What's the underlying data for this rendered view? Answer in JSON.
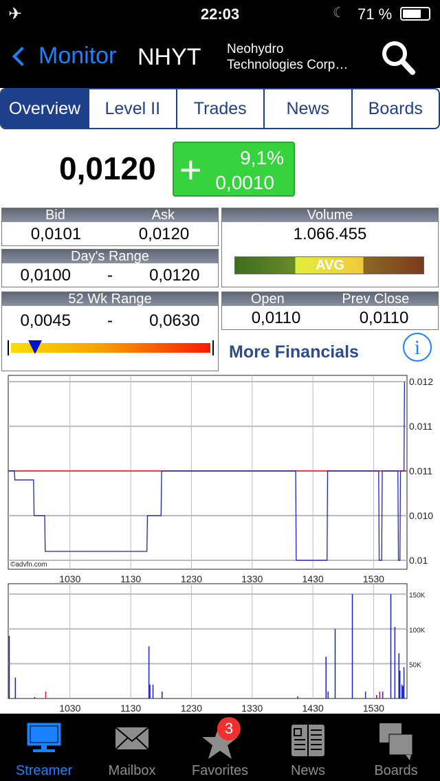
{
  "status_bar": {
    "time": "22:03",
    "battery": "71 %",
    "battery_level": 0.71,
    "icons": [
      "airplane-icon",
      "moon-icon",
      "battery-icon"
    ]
  },
  "nav": {
    "back_label": "Monitor",
    "symbol": "NHYT",
    "company_line1": "Neohydro",
    "company_line2": "Technologies Corp…"
  },
  "tabs": [
    {
      "label": "Overview",
      "active": true
    },
    {
      "label": "Level II"
    },
    {
      "label": "Trades"
    },
    {
      "label": "News"
    },
    {
      "label": "Boards"
    }
  ],
  "quote": {
    "price": "0,0120",
    "change_sign": "+",
    "change_pct": "9,1%",
    "change_abs": "0,0010",
    "colors": {
      "up": "#36d33e"
    }
  },
  "bid_ask": {
    "bid_label": "Bid",
    "ask_label": "Ask",
    "bid": "0,0101",
    "ask": "0,0120"
  },
  "days_range": {
    "label": "Day's Range",
    "low": "0,0100",
    "sep": "-",
    "high": "0,0120"
  },
  "wk52": {
    "label": "52 Wk Range",
    "low": "0,0045",
    "sep": "-",
    "high": "0,0630",
    "marker_fraction": 0.13
  },
  "volume": {
    "label": "Volume",
    "value": "1.066.455",
    "bar_label": "AVG"
  },
  "open_close": {
    "open_label": "Open",
    "prev_label": "Prev Close",
    "open": "0,0110",
    "prev": "0,0110"
  },
  "more_financials": "More Financials",
  "chart_data": [
    {
      "type": "line",
      "watermark": "©advfn.com",
      "x_ticks": [
        "1030",
        "1130",
        "1230",
        "1330",
        "1430",
        "1530"
      ],
      "y_ticks": [
        "0.012",
        "0.011",
        "0.011",
        "0.010",
        "0.01"
      ],
      "y_tick_values": [
        0.012,
        0.0115,
        0.011,
        0.0105,
        0.01
      ],
      "xlim": [
        "09:29",
        "16:03"
      ],
      "ylim": [
        0.0099,
        0.01207
      ],
      "grid": true,
      "reference_line": {
        "value": 0.011,
        "color": "#e02020"
      },
      "series": [
        {
          "color": "#1a22c8",
          "points": [
            [
              "09:29",
              0.011
            ],
            [
              "09:35",
              0.0109
            ],
            [
              "09:54",
              0.0105
            ],
            [
              "10:05",
              0.0101
            ],
            [
              "11:46",
              0.0105
            ],
            [
              "12:00",
              0.011
            ],
            [
              "14:13",
              0.01
            ],
            [
              "14:44",
              0.011
            ],
            [
              "15:35",
              0.01
            ],
            [
              "15:38",
              0.011
            ],
            [
              "15:54",
              0.01
            ],
            [
              "15:56",
              0.011
            ],
            [
              "16:00",
              0.012
            ]
          ]
        }
      ]
    },
    {
      "type": "bar",
      "x_ticks": [
        "1030",
        "1130",
        "1230",
        "1330",
        "1430",
        "1530"
      ],
      "y_ticks": [
        "150K",
        "100K",
        "50K"
      ],
      "y_tick_values": [
        150000,
        100000,
        50000
      ],
      "xlim": [
        "09:29",
        "16:03"
      ],
      "ylim": [
        0,
        165000
      ],
      "grid": true,
      "bars": [
        [
          "09:30",
          90000,
          "b"
        ],
        [
          "09:36",
          30000,
          "b"
        ],
        [
          "09:55",
          2000,
          "b"
        ],
        [
          "10:06",
          10000,
          "r"
        ],
        [
          "11:48",
          75000,
          "b"
        ],
        [
          "11:49",
          20000,
          "b"
        ],
        [
          "11:52",
          20000,
          "b"
        ],
        [
          "12:01",
          10000,
          "b"
        ],
        [
          "14:15",
          3000,
          "b"
        ],
        [
          "14:43",
          60000,
          "b"
        ],
        [
          "14:45",
          10000,
          "b"
        ],
        [
          "14:52",
          100000,
          "b"
        ],
        [
          "15:09",
          150000,
          "b"
        ],
        [
          "15:22",
          10000,
          "b"
        ],
        [
          "15:33",
          5000,
          "b"
        ],
        [
          "15:36",
          10000,
          "r"
        ],
        [
          "15:39",
          10000,
          "b"
        ],
        [
          "15:47",
          150000,
          "b"
        ],
        [
          "15:51",
          103000,
          "b"
        ],
        [
          "15:55",
          65000,
          "b"
        ],
        [
          "15:56",
          40000,
          "b"
        ],
        [
          "15:58",
          20000,
          "b"
        ],
        [
          "15:59",
          18000,
          "b"
        ],
        [
          "16:00",
          45000,
          "b"
        ]
      ],
      "colors": {
        "b": "#1a22c8",
        "r": "#e02020"
      }
    }
  ],
  "tabbar": {
    "items": [
      {
        "label": "Streamer",
        "active": true
      },
      {
        "label": "Mailbox"
      },
      {
        "label": "Favorites",
        "badge": "3"
      },
      {
        "label": "News"
      },
      {
        "label": "Boards"
      }
    ]
  }
}
